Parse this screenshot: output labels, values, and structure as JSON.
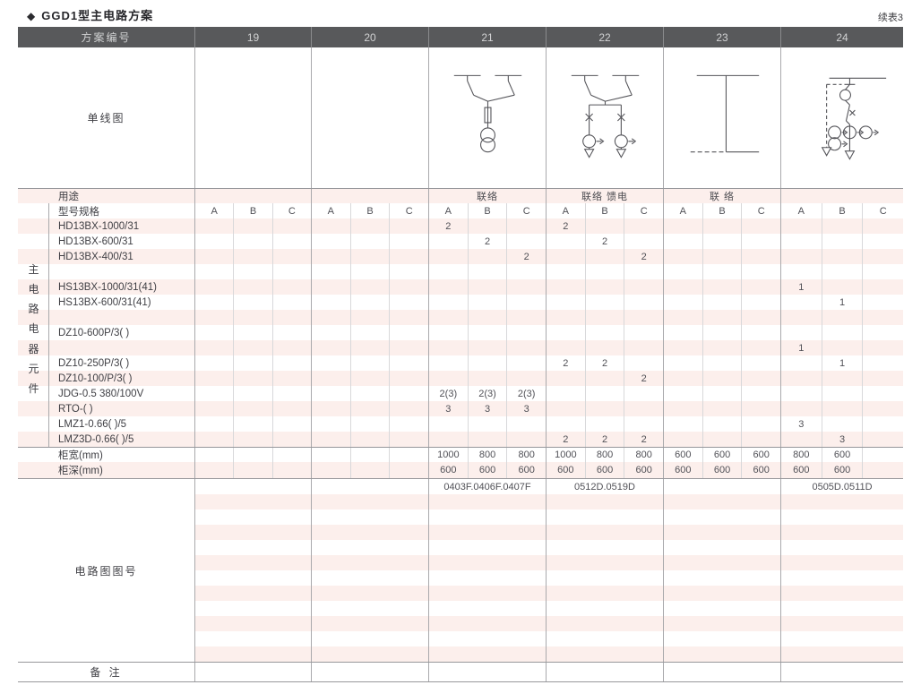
{
  "page": {
    "title_marker": "◆",
    "title": "GGD1型主电路方案",
    "continuation": "续表3"
  },
  "table": {
    "header": {
      "scheme_label": "方案编号",
      "columns": [
        "19",
        "20",
        "21",
        "22",
        "23",
        "24"
      ]
    },
    "diagram_row_label": "单线图",
    "diagrams": {
      "col21": "disconnectors-fuse-transformer",
      "col22": "disconnectors-two-metered-feeders",
      "col23": "busbar-link",
      "col24": "fuse-switch-metering-feeder"
    },
    "usage": {
      "label": "用途",
      "values": [
        "",
        "",
        "联络",
        "联络 馈电",
        "联 络",
        ""
      ]
    },
    "spec_header": {
      "label": "型号规格",
      "subcolumns": [
        "A",
        "B",
        "C"
      ]
    },
    "side_label": {
      "text": "主电路电器元件",
      "chars": [
        "主",
        "电",
        "路",
        "电",
        "器",
        "元",
        "件"
      ]
    },
    "component_rows": [
      {
        "label": "HD13BX-1000/31",
        "cells": [
          "",
          "",
          "",
          "",
          "",
          "",
          "2",
          "",
          "",
          "2",
          "",
          "",
          "",
          "",
          "",
          "",
          "",
          ""
        ]
      },
      {
        "label": "HD13BX-600/31",
        "cells": [
          "",
          "",
          "",
          "",
          "",
          "",
          "",
          "2",
          "",
          "",
          "2",
          "",
          "",
          "",
          "",
          "",
          "",
          ""
        ]
      },
      {
        "label": "HD13BX-400/31",
        "cells": [
          "",
          "",
          "",
          "",
          "",
          "",
          "",
          "",
          "2",
          "",
          "",
          "2",
          "",
          "",
          "",
          "",
          "",
          ""
        ]
      },
      {
        "label": "",
        "cells": [
          "",
          "",
          "",
          "",
          "",
          "",
          "",
          "",
          "",
          "",
          "",
          "",
          "",
          "",
          "",
          "",
          "",
          ""
        ]
      },
      {
        "label": "HS13BX-1000/31(41)",
        "cells": [
          "",
          "",
          "",
          "",
          "",
          "",
          "",
          "",
          "",
          "",
          "",
          "",
          "",
          "",
          "",
          "1",
          "",
          ""
        ]
      },
      {
        "label": "HS13BX-600/31(41)",
        "cells": [
          "",
          "",
          "",
          "",
          "",
          "",
          "",
          "",
          "",
          "",
          "",
          "",
          "",
          "",
          "",
          "",
          "1",
          ""
        ]
      },
      {
        "label": "",
        "cells": [
          "",
          "",
          "",
          "",
          "",
          "",
          "",
          "",
          "",
          "",
          "",
          "",
          "",
          "",
          "",
          "",
          "",
          ""
        ]
      },
      {
        "label": "DZ10-600P/3(  )",
        "cells": [
          "",
          "",
          "",
          "",
          "",
          "",
          "",
          "",
          "",
          "",
          "",
          "",
          "",
          "",
          "",
          "",
          "",
          ""
        ]
      },
      {
        "label": "",
        "cells": [
          "",
          "",
          "",
          "",
          "",
          "",
          "",
          "",
          "",
          "",
          "",
          "",
          "",
          "",
          "",
          "1",
          "",
          ""
        ]
      },
      {
        "label": "DZ10-250P/3(  )",
        "cells": [
          "",
          "",
          "",
          "",
          "",
          "",
          "",
          "",
          "",
          "2",
          "2",
          "",
          "",
          "",
          "",
          "",
          "1",
          ""
        ]
      },
      {
        "label": "DZ10-100/P/3(  )",
        "cells": [
          "",
          "",
          "",
          "",
          "",
          "",
          "",
          "",
          "",
          "",
          "",
          "2",
          "",
          "",
          "",
          "",
          "",
          ""
        ]
      },
      {
        "label": "JDG-0.5 380/100V",
        "cells": [
          "",
          "",
          "",
          "",
          "",
          "",
          "2(3)",
          "2(3)",
          "2(3)",
          "",
          "",
          "",
          "",
          "",
          "",
          "",
          "",
          ""
        ]
      },
      {
        "label": "RTO-(  )",
        "cells": [
          "",
          "",
          "",
          "",
          "",
          "",
          "3",
          "3",
          "3",
          "",
          "",
          "",
          "",
          "",
          "",
          "",
          "",
          ""
        ]
      },
      {
        "label": "LMZ1-0.66(  )/5",
        "cells": [
          "",
          "",
          "",
          "",
          "",
          "",
          "",
          "",
          "",
          "",
          "",
          "",
          "",
          "",
          "",
          "3",
          "",
          ""
        ]
      },
      {
        "label": "LMZ3D-0.66(  )/5",
        "cells": [
          "",
          "",
          "",
          "",
          "",
          "",
          "",
          "",
          "",
          "2",
          "2",
          "2",
          "",
          "",
          "",
          "",
          "3",
          ""
        ]
      }
    ],
    "width_row": {
      "label": "柜宽(mm)",
      "cells": [
        "",
        "",
        "",
        "",
        "",
        "",
        "1000",
        "800",
        "800",
        "1000",
        "800",
        "800",
        "600",
        "600",
        "600",
        "800",
        "600",
        ""
      ]
    },
    "depth_row": {
      "label": "柜深(mm)",
      "cells": [
        "",
        "",
        "",
        "",
        "",
        "",
        "600",
        "600",
        "600",
        "600",
        "600",
        "600",
        "600",
        "600",
        "600",
        "600",
        "600",
        ""
      ]
    },
    "diagram_no": {
      "label": "电路图图号",
      "values": [
        "",
        "",
        "0403F.0406F.0407F",
        "0512D.0519D",
        "",
        "0505D.0511D"
      ]
    },
    "remark": {
      "label": "备 注"
    }
  }
}
